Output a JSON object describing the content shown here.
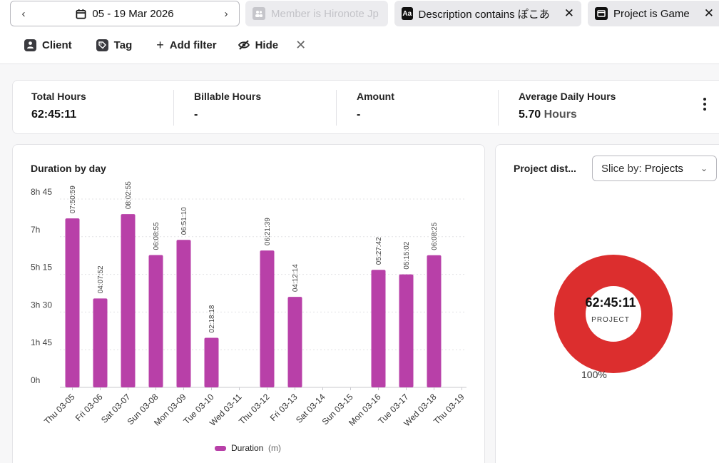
{
  "filters": {
    "date_range": "05 - 19 Mar 2026",
    "member_chip": "Member is Hironote Jp",
    "description_chip": "Description contains ぽこあ",
    "project_chip": "Project is Game",
    "aa_icon_text": "Aa"
  },
  "actions": {
    "client": "Client",
    "tag": "Tag",
    "add_filter": "Add filter",
    "hide": "Hide"
  },
  "summary": {
    "total_hours_label": "Total Hours",
    "total_hours_value": "62:45:11",
    "billable_label": "Billable Hours",
    "billable_value": "-",
    "amount_label": "Amount",
    "amount_value": "-",
    "avg_label": "Average Daily Hours",
    "avg_value": "5.70",
    "avg_unit": "Hours"
  },
  "chart_data": {
    "type": "bar",
    "title": "Duration by day",
    "categories": [
      "Thu 03-05",
      "Fri 03-06",
      "Sat 03-07",
      "Sun 03-08",
      "Mon 03-09",
      "Tue 03-10",
      "Wed 03-11",
      "Thu 03-12",
      "Fri 03-13",
      "Sat 03-14",
      "Sun 03-15",
      "Mon 03-16",
      "Tue 03-17",
      "Wed 03-18",
      "Thu 03-19"
    ],
    "values": [
      470.98,
      247.87,
      482.92,
      368.92,
      411.17,
      138.3,
      0,
      381.65,
      252.23,
      0,
      0,
      327.7,
      315.03,
      368.42,
      0
    ],
    "data_labels": [
      "07:50:59",
      "04:07:52",
      "08:02:55",
      "06:08:55",
      "06:51:10",
      "02:18:18",
      "",
      "06:21:39",
      "04:12:14",
      "",
      "",
      "05:27:42",
      "05:15:02",
      "06:08:25",
      ""
    ],
    "y_ticks": [
      "0h",
      "1h 45",
      "3h 30",
      "5h 15",
      "7h",
      "8h 45"
    ],
    "y_tick_values": [
      0,
      105,
      210,
      315,
      420,
      525
    ],
    "ylim": [
      0,
      525
    ],
    "legend": {
      "name": "Duration",
      "unit": "(m)",
      "placement": "bottom"
    },
    "color": "#b840a8",
    "grid": true
  },
  "donut": {
    "title": "Project dist...",
    "slice_prefix": "Slice by:",
    "slice_value": "Projects",
    "total": "62:45:11",
    "center_label": "PROJECT",
    "percent": "100%",
    "color": "#dc2e2e"
  }
}
